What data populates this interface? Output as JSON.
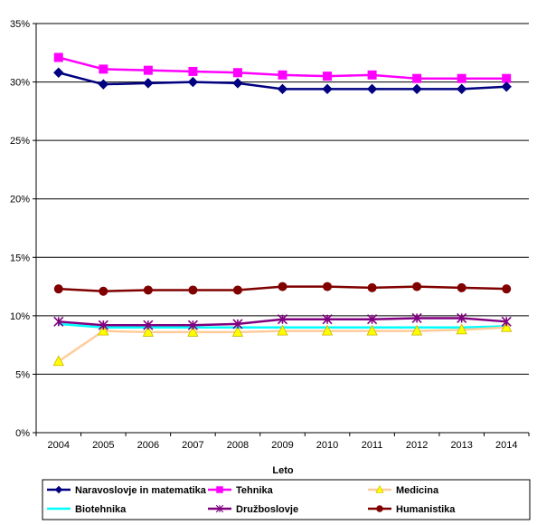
{
  "chart_data": {
    "type": "line",
    "xlabel": "Leto",
    "ylabel": "",
    "ylim": [
      0,
      35
    ],
    "y_ticks": [
      "0%",
      "5%",
      "10%",
      "15%",
      "20%",
      "25%",
      "30%",
      "35%"
    ],
    "y_tick_values": [
      0,
      5,
      10,
      15,
      20,
      25,
      30,
      35
    ],
    "categories": [
      "2004",
      "2005",
      "2006",
      "2007",
      "2008",
      "2009",
      "2010",
      "2011",
      "2012",
      "2013",
      "2014"
    ],
    "grid": "horizontal",
    "legend_position": "bottom",
    "series": [
      {
        "name": "Naravoslovje in matematika",
        "color": "#000080",
        "marker": "diamond",
        "values": [
          30.8,
          29.8,
          29.9,
          30.0,
          29.9,
          29.4,
          29.4,
          29.4,
          29.4,
          29.4,
          29.6
        ]
      },
      {
        "name": "Tehnika",
        "color": "#ff00ff",
        "marker": "square",
        "values": [
          32.1,
          31.1,
          31.0,
          30.9,
          30.8,
          30.6,
          30.5,
          30.6,
          30.3,
          30.3,
          30.3
        ]
      },
      {
        "name": "Medicina",
        "color": "#ffcc99",
        "marker": "triangle",
        "marker_fill": "#ffff00",
        "values": [
          6.1,
          8.7,
          8.6,
          8.6,
          8.6,
          8.7,
          8.7,
          8.7,
          8.7,
          8.8,
          9.0
        ]
      },
      {
        "name": "Biotehnika",
        "color": "#00ffff",
        "marker": "none",
        "values": [
          9.3,
          9.0,
          9.0,
          9.0,
          9.0,
          9.0,
          9.0,
          9.0,
          9.0,
          9.0,
          9.1
        ]
      },
      {
        "name": "Družboslovje",
        "color": "#800080",
        "marker": "star",
        "values": [
          9.5,
          9.2,
          9.2,
          9.2,
          9.3,
          9.7,
          9.7,
          9.7,
          9.8,
          9.8,
          9.5
        ]
      },
      {
        "name": "Humanistika",
        "color": "#800000",
        "marker": "circle",
        "values": [
          12.3,
          12.1,
          12.2,
          12.2,
          12.2,
          12.5,
          12.5,
          12.4,
          12.5,
          12.4,
          12.3
        ]
      }
    ]
  }
}
